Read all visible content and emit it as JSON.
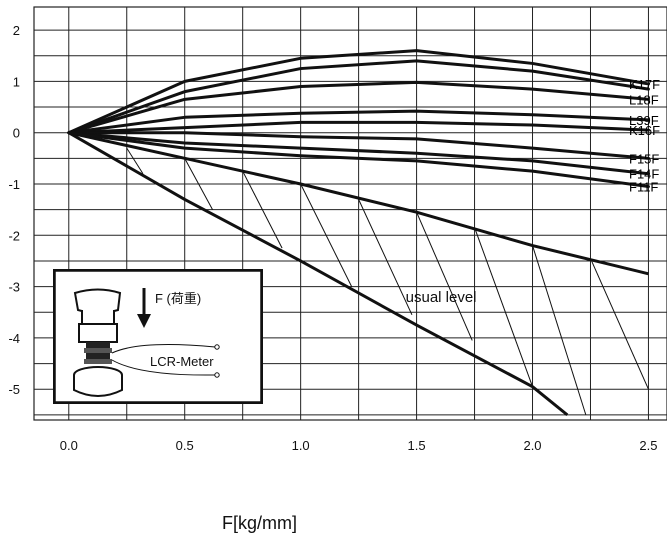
{
  "chart_data": {
    "type": "line",
    "title": "",
    "xlabel": "F[kg/mm]",
    "ylabel": "",
    "xlim": [
      -0.15,
      2.58
    ],
    "ylim": [
      -5.6,
      2.45
    ],
    "x_ticks": [
      0.0,
      0.5,
      1.0,
      1.5,
      2.0,
      2.5
    ],
    "x_tick_labels": [
      "0.0",
      "0.5",
      "1.0",
      "1.5",
      "2.0",
      "2.5"
    ],
    "y_ticks": [
      2,
      1,
      0,
      -1,
      -2,
      -3,
      -4,
      -5
    ],
    "y_tick_labels": [
      "2",
      "1",
      "0",
      "-1",
      "-2",
      "-3",
      "-4",
      "-5"
    ],
    "grid": true,
    "series": [
      {
        "name": "K17F",
        "x": [
          0.0,
          0.5,
          1.0,
          1.5,
          2.0,
          2.5
        ],
        "y": [
          0,
          1.0,
          1.45,
          1.6,
          1.35,
          0.95
        ]
      },
      {
        "name": "",
        "x": [
          0.0,
          0.5,
          1.0,
          1.5,
          2.0,
          2.5
        ],
        "y": [
          0,
          0.8,
          1.25,
          1.4,
          1.2,
          0.85
        ]
      },
      {
        "name": "L18F",
        "x": [
          0.0,
          0.5,
          1.0,
          1.5,
          2.0,
          2.5
        ],
        "y": [
          0,
          0.65,
          0.9,
          0.98,
          0.85,
          0.65
        ]
      },
      {
        "name": "L39F",
        "x": [
          0.0,
          0.5,
          1.0,
          1.5,
          2.0,
          2.5
        ],
        "y": [
          0,
          0.3,
          0.38,
          0.42,
          0.35,
          0.25
        ]
      },
      {
        "name": "K16F",
        "x": [
          0.0,
          0.5,
          1.0,
          1.5,
          2.0,
          2.5
        ],
        "y": [
          0,
          0.1,
          0.2,
          0.2,
          0.15,
          0.05
        ]
      },
      {
        "name": "F15F",
        "x": [
          0.0,
          0.5,
          1.0,
          1.5,
          2.0,
          2.5
        ],
        "y": [
          0,
          0.0,
          -0.08,
          -0.12,
          -0.3,
          -0.5
        ]
      },
      {
        "name": "F14F",
        "x": [
          0.0,
          0.5,
          1.0,
          1.5,
          2.0,
          2.5
        ],
        "y": [
          0,
          -0.2,
          -0.3,
          -0.4,
          -0.55,
          -0.8
        ]
      },
      {
        "name": "F11F",
        "x": [
          0.0,
          0.5,
          1.0,
          1.5,
          2.0,
          2.5
        ],
        "y": [
          0,
          -0.3,
          -0.45,
          -0.55,
          -0.75,
          -1.05
        ]
      }
    ],
    "band": {
      "label": "usual level",
      "upper": {
        "x": [
          0.0,
          0.5,
          1.0,
          1.5,
          2.0,
          2.5
        ],
        "y": [
          0,
          -0.5,
          -1.0,
          -1.55,
          -2.2,
          -2.75
        ]
      },
      "lower": {
        "x": [
          0.0,
          0.5,
          1.0,
          1.5,
          2.0,
          2.15
        ],
        "y": [
          0,
          -1.3,
          -2.5,
          -3.75,
          -4.95,
          -5.5
        ]
      },
      "hatch": [
        {
          "from": [
            0.25,
            -0.3
          ],
          "to": [
            0.32,
            -0.8
          ]
        },
        {
          "from": [
            0.5,
            -0.5
          ],
          "to": [
            0.62,
            -1.5
          ]
        },
        {
          "from": [
            0.75,
            -0.75
          ],
          "to": [
            0.92,
            -2.25
          ]
        },
        {
          "from": [
            1.0,
            -1.0
          ],
          "to": [
            1.22,
            -3.0
          ]
        },
        {
          "from": [
            1.25,
            -1.3
          ],
          "to": [
            1.48,
            -3.55
          ]
        },
        {
          "from": [
            1.5,
            -1.55
          ],
          "to": [
            1.74,
            -4.05
          ]
        },
        {
          "from": [
            1.75,
            -1.85
          ],
          "to": [
            2.0,
            -4.95
          ]
        },
        {
          "from": [
            2.0,
            -2.2
          ],
          "to": [
            2.23,
            -5.5
          ]
        },
        {
          "from": [
            2.25,
            -2.45
          ],
          "to": [
            2.5,
            -5.0
          ]
        }
      ]
    },
    "inset": {
      "force_label": "F (荷重)",
      "meter_label": "LCR-Meter"
    }
  },
  "colors": {
    "line": "#111111",
    "grid": "#222222",
    "background": "#ffffff"
  }
}
